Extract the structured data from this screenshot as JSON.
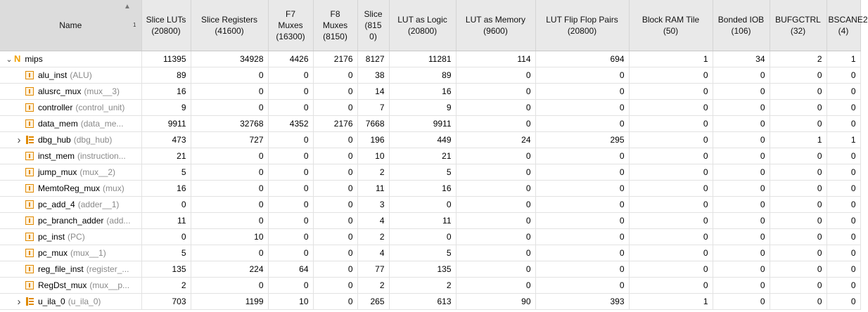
{
  "header": {
    "name_label": "Name",
    "sort_index": "1",
    "columns": [
      "Slice LUTs\n(20800)",
      "Slice Registers\n(41600)",
      "F7\nMuxes\n(16300)",
      "F8\nMuxes\n(8150)",
      "Slice\n(815\n0)",
      "LUT as Logic\n(20800)",
      "LUT as Memory\n(9600)",
      "LUT Flip Flop Pairs\n(20800)",
      "Block RAM Tile\n(50)",
      "Bonded IOB\n(106)",
      "BUFGCTRL\n(32)",
      "BSCANE2\n(4)"
    ]
  },
  "rows": [
    {
      "inst": "mips",
      "module": "",
      "icon": "n-icon",
      "expand": "expanded",
      "values": [
        "11395",
        "34928",
        "4426",
        "2176",
        "8127",
        "11281",
        "114",
        "694",
        "1",
        "34",
        "2",
        "1"
      ]
    },
    {
      "inst": "alu_inst",
      "module": "(ALU)",
      "icon": "instance-icon",
      "expand": "",
      "values": [
        "89",
        "0",
        "0",
        "0",
        "38",
        "89",
        "0",
        "0",
        "0",
        "0",
        "0",
        "0"
      ]
    },
    {
      "inst": "alusrc_mux",
      "module": "(mux__3)",
      "icon": "instance-icon",
      "expand": "",
      "values": [
        "16",
        "0",
        "0",
        "0",
        "14",
        "16",
        "0",
        "0",
        "0",
        "0",
        "0",
        "0"
      ]
    },
    {
      "inst": "controller",
      "module": "(control_unit)",
      "icon": "instance-icon",
      "expand": "",
      "values": [
        "9",
        "0",
        "0",
        "0",
        "7",
        "9",
        "0",
        "0",
        "0",
        "0",
        "0",
        "0"
      ]
    },
    {
      "inst": "data_mem",
      "module": "(data_me...",
      "icon": "instance-icon",
      "expand": "",
      "values": [
        "9911",
        "32768",
        "4352",
        "2176",
        "7668",
        "9911",
        "0",
        "0",
        "0",
        "0",
        "0",
        "0"
      ]
    },
    {
      "inst": "dbg_hub",
      "module": "(dbg_hub)",
      "icon": "hierarchy-icon",
      "expand": "collapsed",
      "values": [
        "473",
        "727",
        "0",
        "0",
        "196",
        "449",
        "24",
        "295",
        "0",
        "0",
        "1",
        "1"
      ]
    },
    {
      "inst": "inst_mem",
      "module": "(instruction...",
      "icon": "instance-icon",
      "expand": "",
      "values": [
        "21",
        "0",
        "0",
        "0",
        "10",
        "21",
        "0",
        "0",
        "0",
        "0",
        "0",
        "0"
      ]
    },
    {
      "inst": "jump_mux",
      "module": "(mux__2)",
      "icon": "instance-icon",
      "expand": "",
      "values": [
        "5",
        "0",
        "0",
        "0",
        "2",
        "5",
        "0",
        "0",
        "0",
        "0",
        "0",
        "0"
      ]
    },
    {
      "inst": "MemtoReg_mux",
      "module": "(mux)",
      "icon": "instance-icon",
      "expand": "",
      "values": [
        "16",
        "0",
        "0",
        "0",
        "11",
        "16",
        "0",
        "0",
        "0",
        "0",
        "0",
        "0"
      ]
    },
    {
      "inst": "pc_add_4",
      "module": "(adder__1)",
      "icon": "instance-icon",
      "expand": "",
      "values": [
        "0",
        "0",
        "0",
        "0",
        "3",
        "0",
        "0",
        "0",
        "0",
        "0",
        "0",
        "0"
      ]
    },
    {
      "inst": "pc_branch_adder",
      "module": "(add...",
      "icon": "instance-icon",
      "expand": "",
      "values": [
        "11",
        "0",
        "0",
        "0",
        "4",
        "11",
        "0",
        "0",
        "0",
        "0",
        "0",
        "0"
      ]
    },
    {
      "inst": "pc_inst",
      "module": "(PC)",
      "icon": "instance-icon",
      "expand": "",
      "values": [
        "0",
        "10",
        "0",
        "0",
        "2",
        "0",
        "0",
        "0",
        "0",
        "0",
        "0",
        "0"
      ]
    },
    {
      "inst": "pc_mux",
      "module": "(mux__1)",
      "icon": "instance-icon",
      "expand": "",
      "values": [
        "5",
        "0",
        "0",
        "0",
        "4",
        "5",
        "0",
        "0",
        "0",
        "0",
        "0",
        "0"
      ]
    },
    {
      "inst": "reg_file_inst",
      "module": "(register_...",
      "icon": "instance-icon",
      "expand": "",
      "values": [
        "135",
        "224",
        "64",
        "0",
        "77",
        "135",
        "0",
        "0",
        "0",
        "0",
        "0",
        "0"
      ]
    },
    {
      "inst": "RegDst_mux",
      "module": "(mux__p...",
      "icon": "instance-icon",
      "expand": "",
      "values": [
        "2",
        "0",
        "0",
        "0",
        "2",
        "2",
        "0",
        "0",
        "0",
        "0",
        "0",
        "0"
      ]
    },
    {
      "inst": "u_ila_0",
      "module": "(u_ila_0)",
      "icon": "hierarchy-icon",
      "expand": "collapsed",
      "values": [
        "703",
        "1199",
        "10",
        "0",
        "265",
        "613",
        "90",
        "393",
        "1",
        "0",
        "0",
        "0"
      ]
    }
  ]
}
